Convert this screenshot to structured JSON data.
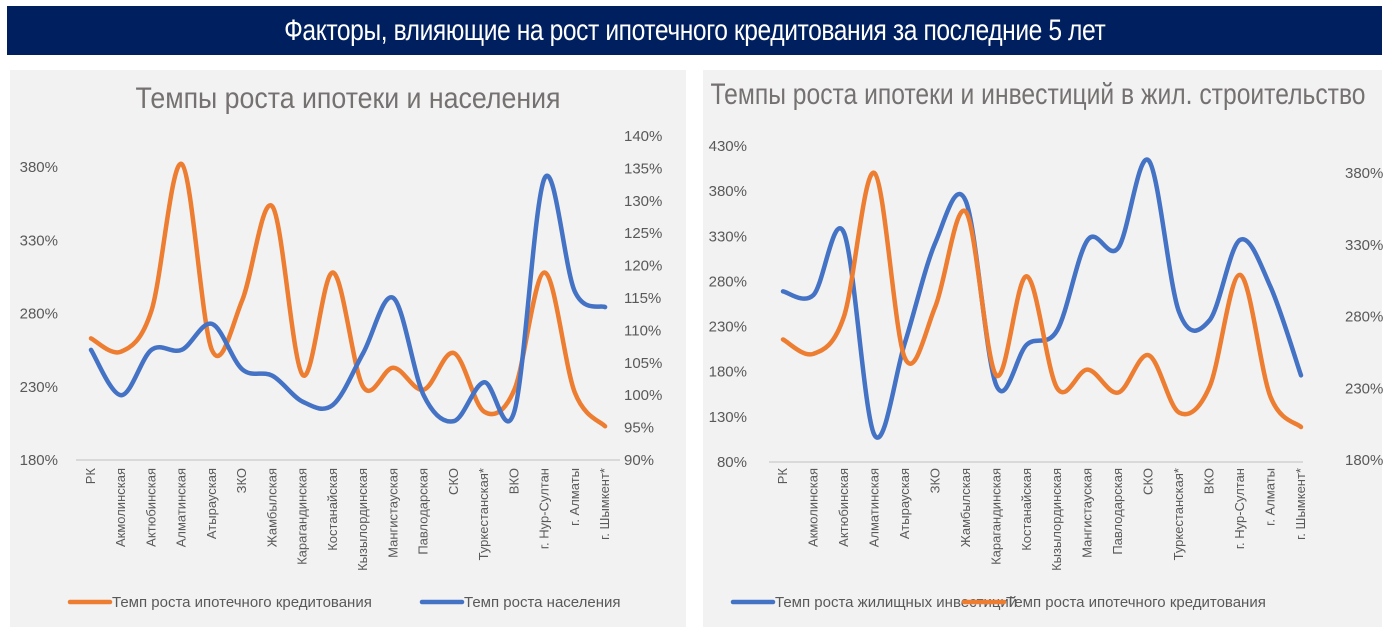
{
  "header": {
    "title": "Факторы, влияющие на рост ипотечного кредитования за последние 5 лет"
  },
  "colors": {
    "header_bg": "#001f5f",
    "orange": "#ed7d31",
    "blue": "#4472c4",
    "panel_bg": "#f2f2f2"
  },
  "chart_data": [
    {
      "type": "line",
      "title": "Темпы роста ипотеки и населения",
      "categories": [
        "РК",
        "Акмолинская",
        "Актюбинская",
        "Алматинская",
        "Атырауская",
        "ЗКО",
        "Жамбылская",
        "Карагандинская",
        "Костанайская",
        "Кызылординская",
        "Мангистауская",
        "Павлодарская",
        "СКО",
        "Туркестанская*",
        "ВКО",
        "г. Нур-Султан",
        "г. Алматы",
        "г. Шымкент*"
      ],
      "y_left": {
        "range": [
          180,
          380
        ],
        "ticks": [
          "180%",
          "230%",
          "280%",
          "330%",
          "380%"
        ],
        "tick_values": [
          180,
          230,
          280,
          330,
          380
        ]
      },
      "y_right": {
        "range": [
          90,
          140
        ],
        "ticks": [
          "90%",
          "95%",
          "100%",
          "105%",
          "110%",
          "115%",
          "120%",
          "125%",
          "130%",
          "135%",
          "140%"
        ],
        "tick_values": [
          90,
          95,
          100,
          105,
          110,
          115,
          120,
          125,
          130,
          135,
          140
        ]
      },
      "series": [
        {
          "name": "Темп роста ипотечного кредитования",
          "color": "orange",
          "axis": "left",
          "values": [
            263,
            254,
            282,
            382,
            255,
            289,
            353,
            238,
            308,
            230,
            243,
            228,
            253,
            213,
            228,
            308,
            226,
            203
          ]
        },
        {
          "name": "Темп роста населения",
          "color": "blue",
          "axis": "right",
          "values": [
            107,
            100,
            107,
            107,
            111,
            104,
            103,
            99,
            98.5,
            106.5,
            115,
            100,
            96,
            102,
            97.5,
            133.5,
            116,
            113.6
          ]
        }
      ],
      "legend": [
        "Темп роста ипотечного кредитования",
        "Темп роста населения"
      ],
      "legend_position": "bottom",
      "smooth": true,
      "grid": false
    },
    {
      "type": "line",
      "title": "Темпы роста ипотеки и инвестиций в жил. строительство",
      "categories": [
        "РК",
        "Акмолинская",
        "Актюбинская",
        "Алматинская",
        "Атырауская",
        "ЗКО",
        "Жамбылская",
        "Карагандинская",
        "Костанайская",
        "Кызылординская",
        "Мангистауская",
        "Павлодарская",
        "СКО",
        "Туркестанская*",
        "ВКО",
        "г. Нур-Султан",
        "г. Алматы",
        "г. Шымкент*"
      ],
      "y_left": {
        "range": [
          80,
          430
        ],
        "ticks": [
          "80%",
          "130%",
          "180%",
          "230%",
          "280%",
          "330%",
          "380%",
          "430%"
        ],
        "tick_values": [
          80,
          130,
          180,
          230,
          280,
          330,
          380,
          430
        ]
      },
      "y_right": {
        "range": [
          180,
          380
        ],
        "ticks": [
          "180%",
          "230%",
          "280%",
          "330%",
          "380%"
        ],
        "tick_values": [
          180,
          230,
          280,
          330,
          380
        ]
      },
      "series": [
        {
          "name": "Темп роста жилищных инвестиций",
          "color": "blue",
          "axis": "left",
          "values": [
            269,
            265,
            334,
            110,
            212,
            323,
            369,
            165,
            210,
            226,
            326,
            317,
            414,
            246,
            237,
            326,
            274,
            176
          ]
        },
        {
          "name": "Темп роста ипотечного кредитования",
          "color": "orange",
          "axis": "right",
          "values": [
            264,
            254,
            280,
            380,
            251,
            287,
            353,
            239,
            308,
            230,
            243,
            227,
            253,
            213,
            231,
            309,
            224,
            203
          ]
        }
      ],
      "legend": [
        "Темп роста жилищных инвестиций",
        "Темп роста ипотечного кредитования"
      ],
      "legend_position": "bottom",
      "smooth": true,
      "grid": false
    }
  ]
}
